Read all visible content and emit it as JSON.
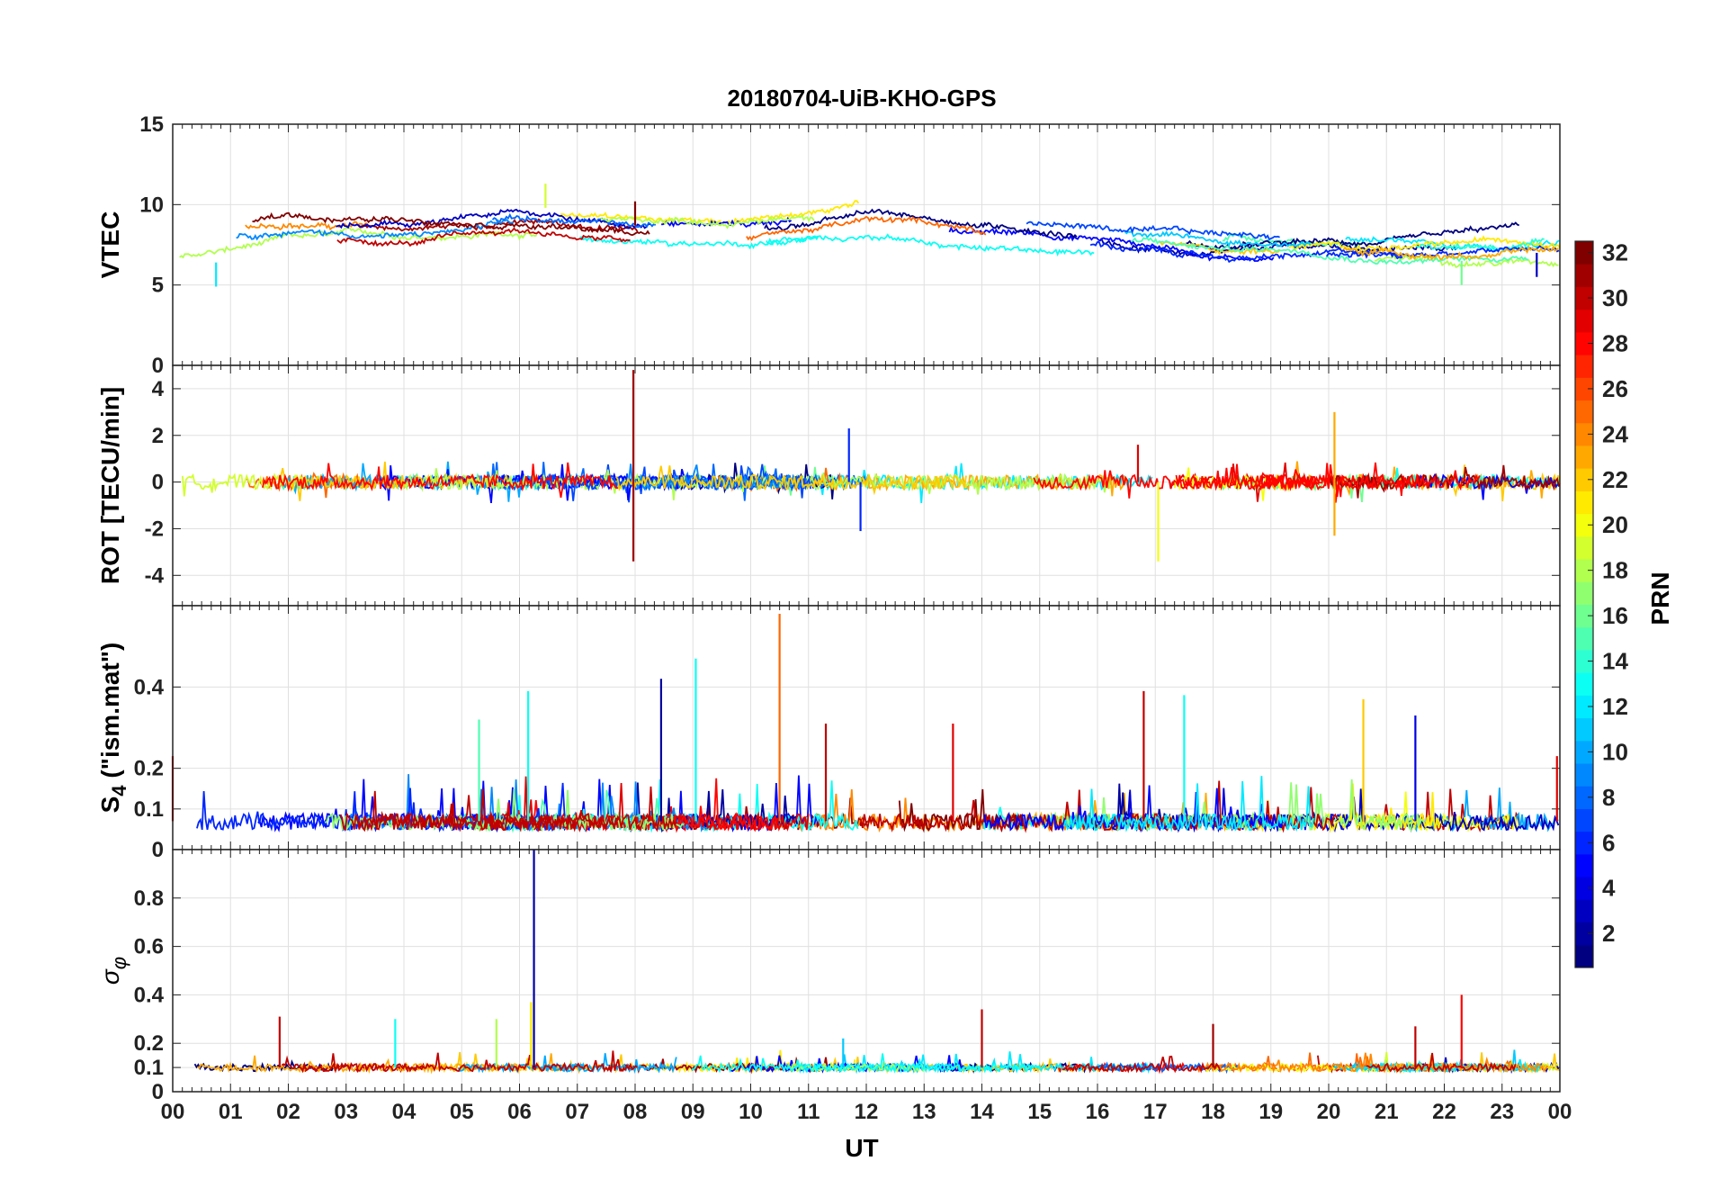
{
  "figure": {
    "title": "20180704-UiB-KHO-GPS",
    "xlabel": "UT",
    "x_ticks": [
      "00",
      "01",
      "02",
      "03",
      "04",
      "05",
      "06",
      "07",
      "08",
      "09",
      "10",
      "11",
      "12",
      "13",
      "14",
      "15",
      "16",
      "17",
      "18",
      "19",
      "20",
      "21",
      "22",
      "23",
      "00"
    ]
  },
  "colorbar": {
    "label": "PRN",
    "range": [
      1,
      32
    ],
    "ticks": [
      2,
      4,
      6,
      8,
      10,
      12,
      14,
      16,
      18,
      20,
      22,
      24,
      26,
      28,
      30,
      32
    ],
    "colormap": "jet"
  },
  "chart_data": [
    {
      "type": "line",
      "panel": "VTEC",
      "ylabel": "VTEC",
      "ylim": [
        0,
        15
      ],
      "yticks": [
        0,
        5,
        10,
        15
      ],
      "grid": true,
      "x_range_hours": [
        0,
        24
      ],
      "series_description": "one trace per GPS satellite pass, colored by PRN",
      "typical_values": {
        "min": 5,
        "max": 11.3,
        "baseline_by_hour": [
          [
            0,
            7.5
          ],
          [
            2,
            8.5
          ],
          [
            4,
            8.3
          ],
          [
            6,
            8.8
          ],
          [
            8,
            8.2
          ],
          [
            10,
            8.3
          ],
          [
            12,
            9.2
          ],
          [
            14,
            8.5
          ],
          [
            16,
            8.2
          ],
          [
            18,
            7.3
          ],
          [
            20,
            7.3
          ],
          [
            22,
            7.2
          ],
          [
            24,
            7.5
          ]
        ]
      },
      "notable_points": [
        {
          "x": 0.75,
          "y": 4.9,
          "prn": 12
        },
        {
          "x": 6.45,
          "y": 11.3,
          "prn": 19
        },
        {
          "x": 8.0,
          "y": 10.2,
          "prn": 32
        },
        {
          "x": 22.3,
          "y": 5.0,
          "prn": 16
        },
        {
          "x": 23.6,
          "y": 5.5,
          "prn": 3
        }
      ]
    },
    {
      "type": "line",
      "panel": "ROT",
      "ylabel": "ROT [TECU/min]",
      "ylim": [
        -5.3,
        5
      ],
      "yticks": [
        -4,
        -2,
        0,
        2,
        4
      ],
      "grid": true,
      "x_range_hours": [
        0,
        24
      ],
      "typical_values": {
        "noise_amplitude": 0.3
      },
      "notable_points": [
        {
          "x": 7.97,
          "y": 4.8,
          "prn": 31
        },
        {
          "x": 7.97,
          "y": -3.4,
          "prn": 31
        },
        {
          "x": 11.7,
          "y": 2.3,
          "prn": 6
        },
        {
          "x": 11.9,
          "y": -2.1,
          "prn": 6
        },
        {
          "x": 17.05,
          "y": -3.4,
          "prn": 20
        },
        {
          "x": 20.1,
          "y": 3.0,
          "prn": 23
        },
        {
          "x": 20.1,
          "y": -2.3,
          "prn": 23
        },
        {
          "x": 16.7,
          "y": 1.6,
          "prn": 29
        }
      ]
    },
    {
      "type": "line",
      "panel": "S4",
      "ylabel": "S_4 (\"ism.mat\")",
      "ylabel_main": "S",
      "ylabel_sub": "4",
      "ylabel_rest": " (\"ism.mat\")",
      "ylim": [
        0,
        0.6
      ],
      "yticks": [
        0,
        0.1,
        0.2,
        0.4
      ],
      "grid": true,
      "x_range_hours": [
        0,
        24
      ],
      "typical_values": {
        "baseline": 0.06
      },
      "notable_points": [
        {
          "x": 10.5,
          "y": 0.58,
          "prn": 25
        },
        {
          "x": 9.05,
          "y": 0.47,
          "prn": 13
        },
        {
          "x": 8.45,
          "y": 0.42,
          "prn": 2
        },
        {
          "x": 16.8,
          "y": 0.39,
          "prn": 30
        },
        {
          "x": 6.15,
          "y": 0.39,
          "prn": 13
        },
        {
          "x": 17.5,
          "y": 0.38,
          "prn": 13
        },
        {
          "x": 20.6,
          "y": 0.37,
          "prn": 22
        },
        {
          "x": 21.5,
          "y": 0.33,
          "prn": 4
        },
        {
          "x": 5.3,
          "y": 0.32,
          "prn": 15
        },
        {
          "x": 11.3,
          "y": 0.31,
          "prn": 30
        },
        {
          "x": 13.5,
          "y": 0.31,
          "prn": 29
        },
        {
          "x": 0.0,
          "y": 0.23,
          "prn": 30
        },
        {
          "x": 23.95,
          "y": 0.23,
          "prn": 29
        }
      ]
    },
    {
      "type": "line",
      "panel": "sigma_phi",
      "ylabel": "σ_φ",
      "ylabel_main": "σ",
      "ylabel_sub": "φ",
      "ylim": [
        0,
        1
      ],
      "yticks": [
        0,
        0.1,
        0.2,
        0.4,
        0.6,
        0.8
      ],
      "grid": true,
      "x_range_hours": [
        0,
        24
      ],
      "typical_values": {
        "baseline": 0.1
      },
      "notable_points": [
        {
          "x": 6.25,
          "y": 1.0,
          "prn": 2
        },
        {
          "x": 6.2,
          "y": 0.37,
          "prn": 21
        },
        {
          "x": 1.85,
          "y": 0.31,
          "prn": 30
        },
        {
          "x": 3.85,
          "y": 0.3,
          "prn": 13
        },
        {
          "x": 5.6,
          "y": 0.3,
          "prn": 18
        },
        {
          "x": 14.0,
          "y": 0.34,
          "prn": 30
        },
        {
          "x": 18.0,
          "y": 0.28,
          "prn": 31
        },
        {
          "x": 21.5,
          "y": 0.27,
          "prn": 30
        },
        {
          "x": 22.3,
          "y": 0.4,
          "prn": 28
        },
        {
          "x": 11.6,
          "y": 0.22,
          "prn": 11
        }
      ]
    }
  ]
}
